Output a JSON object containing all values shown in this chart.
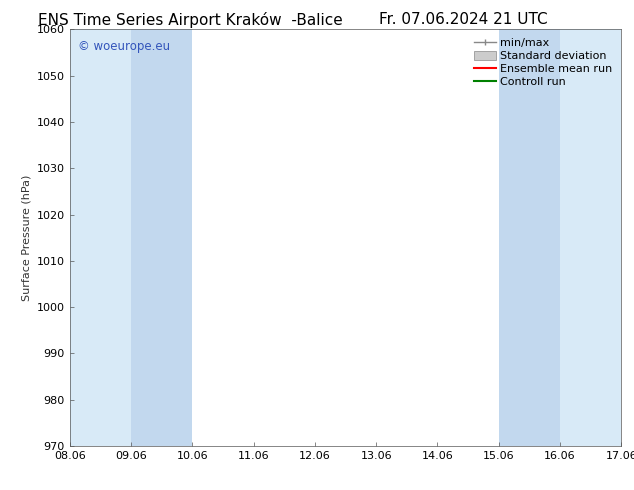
{
  "title": "ENS Time Series Airport Kraków  -Balice",
  "date_label": "Fr. 07.06.2024 21 UTC",
  "ylabel": "Surface Pressure (hPa)",
  "ylim": [
    970,
    1060
  ],
  "yticks": [
    970,
    980,
    990,
    1000,
    1010,
    1020,
    1030,
    1040,
    1050,
    1060
  ],
  "xtick_labels": [
    "08.06",
    "09.06",
    "10.06",
    "11.06",
    "12.06",
    "13.06",
    "14.06",
    "15.06",
    "16.06",
    "17.06"
  ],
  "xlim": [
    0,
    9
  ],
  "shaded_bands": [
    {
      "x_start": 0.0,
      "x_end": 1.0
    },
    {
      "x_start": 1.0,
      "x_end": 2.0
    },
    {
      "x_start": 7.0,
      "x_end": 8.0
    },
    {
      "x_start": 8.0,
      "x_end": 9.0
    }
  ],
  "band_color_outer": "#d8eaf7",
  "band_color_inner": "#c2d8ee",
  "watermark_text": "© woeurope.eu",
  "watermark_color": "#3355bb",
  "legend_entries": [
    {
      "label": "min/max",
      "style": "errorbar",
      "color": "#888888"
    },
    {
      "label": "Standard deviation",
      "style": "fill",
      "color": "#bbbbbb"
    },
    {
      "label": "Ensemble mean run",
      "style": "line",
      "color": "red"
    },
    {
      "label": "Controll run",
      "style": "line",
      "color": "green"
    }
  ],
  "background_color": "#ffffff",
  "plot_bg_color": "#ffffff",
  "title_fontsize": 11,
  "label_fontsize": 8,
  "tick_fontsize": 8,
  "legend_fontsize": 8
}
